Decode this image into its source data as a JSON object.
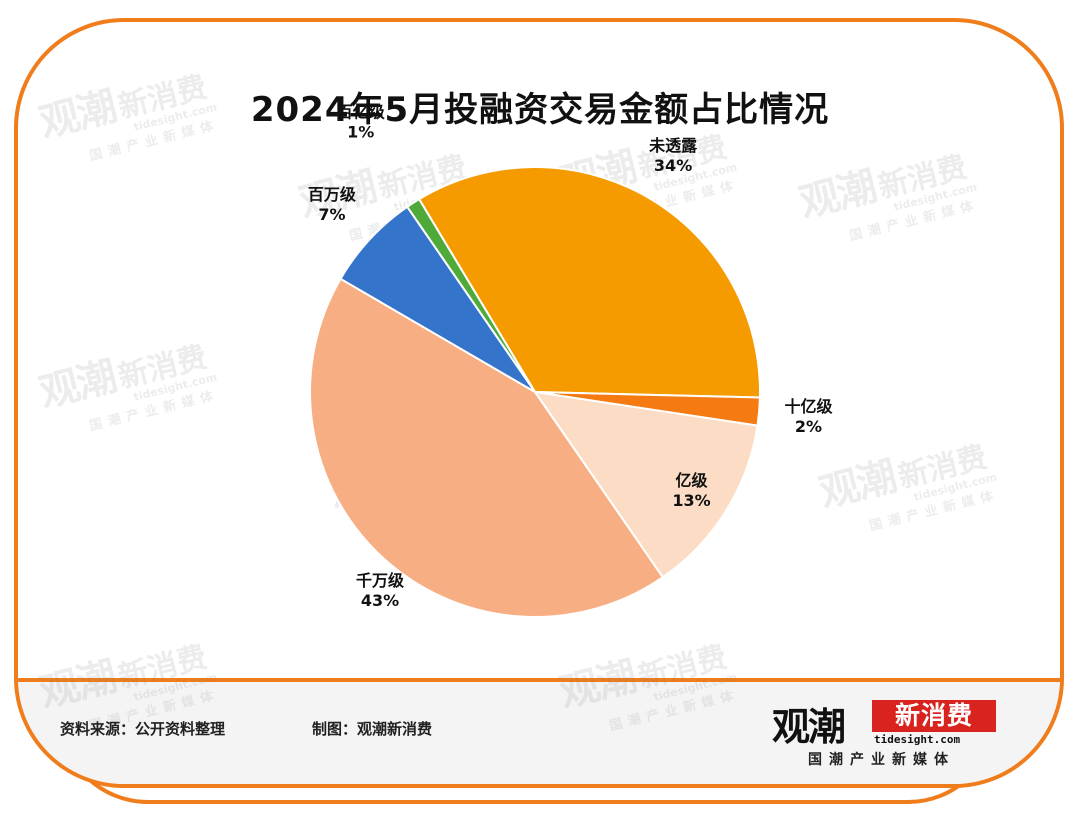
{
  "title": "2024年5月投融资交易金额占比情况",
  "chart_data": {
    "type": "pie",
    "title": "2024年5月投融资交易金额占比情况",
    "slices": [
      {
        "label": "未透露",
        "value": 34,
        "display": "34%",
        "color": "#f59b00"
      },
      {
        "label": "十亿级",
        "value": 2,
        "display": "2%",
        "color": "#f57a12"
      },
      {
        "label": "亿级",
        "value": 13,
        "display": "13%",
        "color": "#fcdcc4"
      },
      {
        "label": "千万级",
        "value": 43,
        "display": "43%",
        "color": "#f8ae83"
      },
      {
        "label": "百万级",
        "value": 7,
        "display": "7%",
        "color": "#3574cb"
      },
      {
        "label": "百亿级",
        "value": 1,
        "display": "1%",
        "color": "#4faa3a"
      }
    ]
  },
  "footer": {
    "source": "资料来源：公开资料整理",
    "credit": "制图：观潮新消费"
  },
  "logo": {
    "main": "观潮",
    "box": "新消费",
    "url": "tidesight.com",
    "tagline": "国潮产业新媒体"
  },
  "watermark": {
    "main": "观潮",
    "box": "新消费",
    "url": "tidesight.com",
    "tagline": "国潮产业新媒体"
  }
}
